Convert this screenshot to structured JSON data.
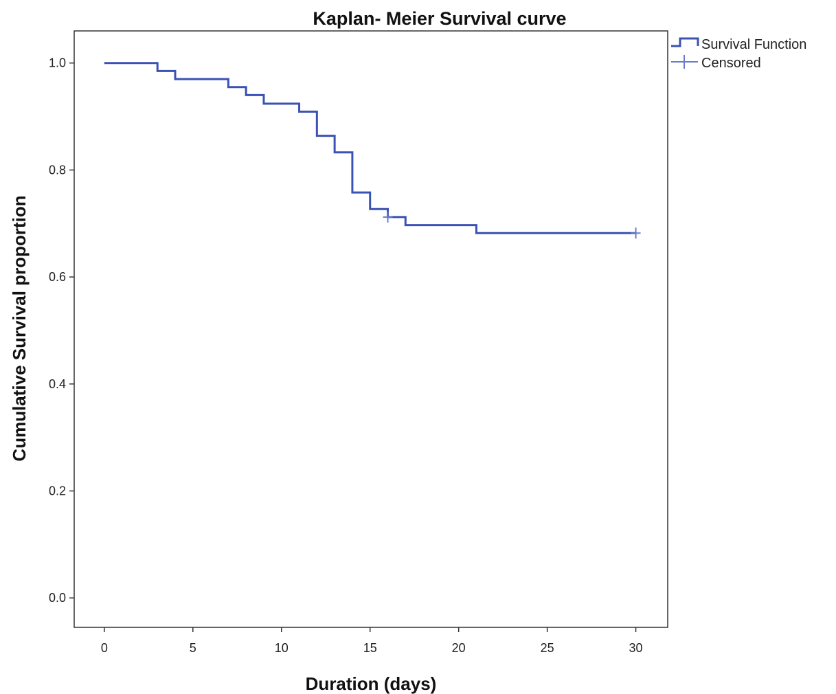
{
  "chart_data": {
    "type": "line",
    "title": "Kaplan- Meier Survival curve",
    "xlabel": "Duration (days)",
    "ylabel": "Cumulative Survival proportion",
    "xlim": [
      -1.7,
      31.8
    ],
    "ylim": [
      -0.055,
      1.06
    ],
    "xticks": [
      0,
      5,
      10,
      15,
      20,
      25,
      30
    ],
    "yticks": [
      0.0,
      0.2,
      0.4,
      0.6,
      0.8,
      1.0
    ],
    "xtick_labels": [
      "0",
      "5",
      "10",
      "15",
      "20",
      "25",
      "30"
    ],
    "ytick_labels": [
      "0.0",
      "0.2",
      "0.4",
      "0.6",
      "0.8",
      "1.0"
    ],
    "grid": false,
    "legend_position": "outside-top-right",
    "legend": [
      "Survival Function",
      "Censored"
    ],
    "series": [
      {
        "name": "Survival Function",
        "step": "post",
        "color": "#3a52b4",
        "x": [
          0,
          3,
          4,
          7,
          8,
          9,
          11,
          12,
          13,
          14,
          15,
          16,
          17,
          21,
          30
        ],
        "y": [
          1.0,
          0.985,
          0.97,
          0.955,
          0.94,
          0.924,
          0.909,
          0.864,
          0.833,
          0.758,
          0.727,
          0.712,
          0.697,
          0.682,
          0.682
        ]
      },
      {
        "name": "Censored",
        "marker": "plus",
        "color": "#6a7cc9",
        "x": [
          16,
          30
        ],
        "y": [
          0.712,
          0.682
        ]
      }
    ]
  }
}
